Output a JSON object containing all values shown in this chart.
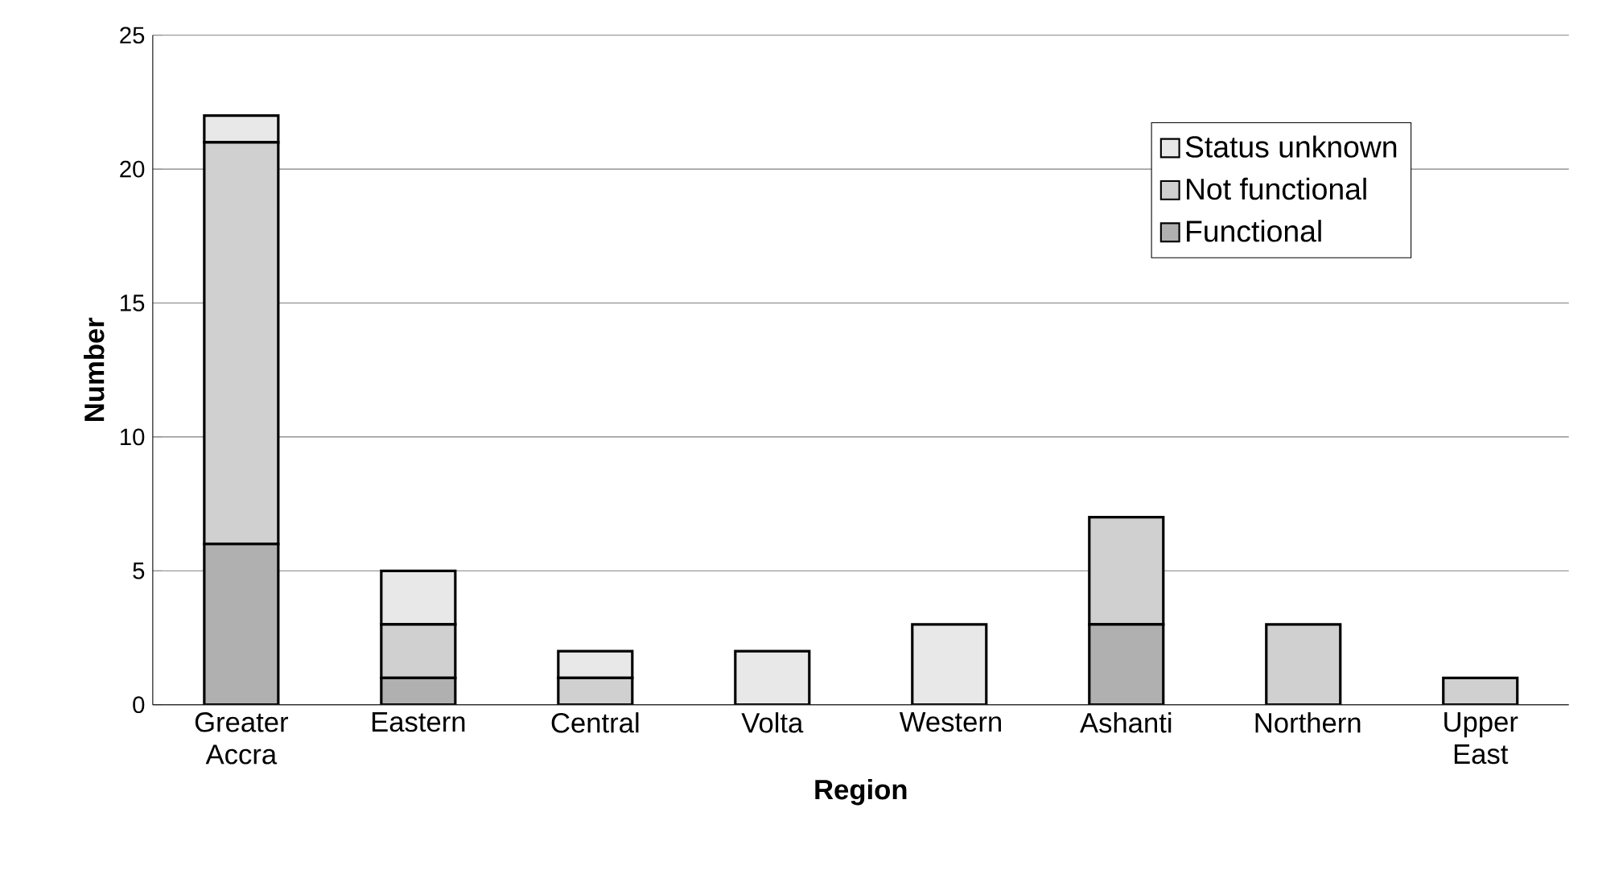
{
  "chart_data": {
    "type": "bar",
    "stacked": true,
    "xlabel": "Region",
    "ylabel": "Number",
    "categories": [
      "Greater Accra",
      "Eastern",
      "Central",
      "Volta",
      "Western",
      "Ashanti",
      "Northern",
      "Upper East"
    ],
    "series": [
      {
        "name": "Functional",
        "color": "#b0b0b0",
        "values": [
          6,
          1,
          0,
          0,
          0,
          3,
          0,
          0
        ]
      },
      {
        "name": "Not functional",
        "color": "#d0d0d0",
        "values": [
          15,
          2,
          1,
          0,
          0,
          4,
          3,
          1
        ]
      },
      {
        "name": "Status unknown",
        "color": "#e8e8e8",
        "values": [
          1,
          2,
          1,
          2,
          3,
          0,
          0,
          0
        ]
      }
    ],
    "ylim": [
      0,
      25
    ],
    "yticks": [
      0,
      5,
      10,
      15,
      20,
      25
    ],
    "grid": "y",
    "legend": "top right"
  }
}
